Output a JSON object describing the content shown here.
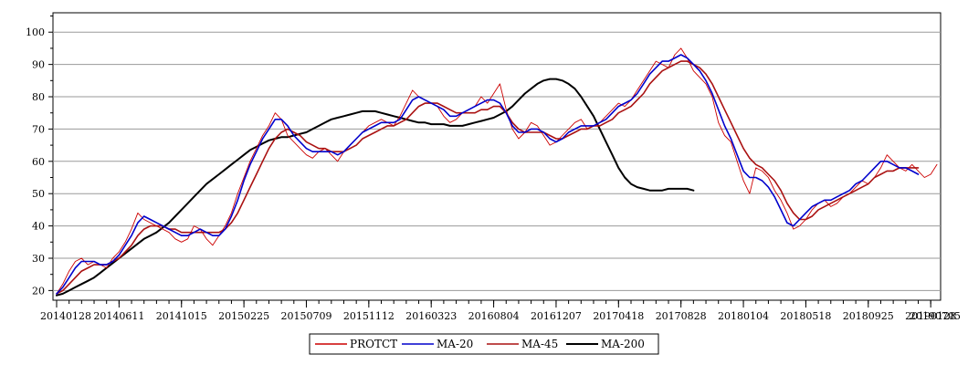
{
  "chart_data": {
    "type": "line",
    "title": "",
    "xlabel": "",
    "ylabel": "",
    "ylim": [
      17,
      106
    ],
    "yticks": [
      20,
      30,
      40,
      50,
      60,
      70,
      80,
      90,
      100
    ],
    "grid": "horizontal",
    "legend_position": "bottom-center",
    "x_tick_labels": [
      "20140128",
      "20140611",
      "20141015",
      "20150225",
      "20150709",
      "20151112",
      "20160323",
      "20160804",
      "20161207",
      "20170418",
      "20170828",
      "20180104",
      "20180518",
      "20180925",
      "20190128",
      "20190705"
    ],
    "x_tick_index": [
      0,
      10,
      20,
      30,
      40,
      50,
      60,
      70,
      80,
      90,
      100,
      110,
      120,
      130,
      140,
      150
    ],
    "series": [
      {
        "name": "PROTCT",
        "color": "#cc0000",
        "width": 0.9,
        "values": [
          19,
          22,
          26,
          29,
          30,
          28,
          29,
          28,
          27,
          30,
          32,
          35,
          39,
          44,
          42,
          41,
          40,
          39,
          38,
          36,
          35,
          36,
          40,
          39,
          36,
          34,
          37,
          40,
          44,
          50,
          55,
          60,
          64,
          68,
          71,
          75,
          73,
          68,
          66,
          64,
          62,
          61,
          63,
          64,
          62,
          60,
          63,
          65,
          67,
          69,
          71,
          72,
          73,
          72,
          71,
          74,
          78,
          82,
          80,
          79,
          78,
          77,
          74,
          72,
          73,
          75,
          76,
          77,
          80,
          78,
          81,
          84,
          76,
          70,
          67,
          69,
          72,
          71,
          68,
          65,
          66,
          68,
          70,
          72,
          73,
          70,
          71,
          72,
          74,
          76,
          78,
          77,
          79,
          82,
          85,
          88,
          91,
          90,
          89,
          93,
          95,
          92,
          88,
          86,
          84,
          80,
          72,
          68,
          66,
          60,
          54,
          50,
          58,
          57,
          55,
          51,
          48,
          44,
          39,
          40,
          42,
          45,
          47,
          48,
          46,
          47,
          49,
          50,
          52,
          54,
          53,
          55,
          58,
          62,
          60,
          58,
          57,
          59,
          57,
          55,
          56,
          59
        ]
      },
      {
        "name": "MA-20",
        "color": "#0000cc",
        "width": 1.6,
        "values": [
          19,
          21,
          24,
          27,
          29,
          29,
          29,
          28,
          28,
          29,
          31,
          34,
          37,
          41,
          43,
          42,
          41,
          40,
          39,
          38,
          37,
          37,
          38,
          39,
          38,
          37,
          37,
          39,
          43,
          48,
          54,
          59,
          63,
          67,
          70,
          73,
          73,
          71,
          68,
          66,
          64,
          63,
          63,
          63,
          63,
          62,
          63,
          65,
          67,
          69,
          70,
          71,
          72,
          72,
          72,
          73,
          76,
          79,
          80,
          79,
          78,
          77,
          76,
          74,
          74,
          75,
          76,
          77,
          78,
          79,
          79,
          78,
          75,
          71,
          69,
          69,
          70,
          70,
          69,
          67,
          66,
          67,
          69,
          70,
          71,
          71,
          71,
          72,
          73,
          75,
          77,
          78,
          79,
          81,
          84,
          87,
          89,
          91,
          91,
          92,
          93,
          92,
          90,
          88,
          85,
          81,
          76,
          71,
          67,
          62,
          57,
          55,
          55,
          54,
          52,
          49,
          45,
          41,
          40,
          42,
          44,
          46,
          47,
          48,
          48,
          49,
          50,
          51,
          53,
          54,
          56,
          58,
          60,
          60,
          59,
          58,
          58,
          57,
          56
        ]
      },
      {
        "name": "MA-45",
        "color": "#aa1111",
        "width": 1.6,
        "values": [
          19,
          20,
          22,
          24,
          26,
          27,
          28,
          28,
          28,
          29,
          30,
          32,
          34,
          37,
          39,
          40,
          40,
          40,
          39,
          39,
          38,
          38,
          38,
          38,
          38,
          38,
          38,
          39,
          41,
          44,
          48,
          52,
          56,
          60,
          64,
          67,
          69,
          70,
          69,
          68,
          66,
          65,
          64,
          64,
          63,
          63,
          63,
          64,
          65,
          67,
          68,
          69,
          70,
          71,
          71,
          72,
          73,
          75,
          77,
          78,
          78,
          78,
          77,
          76,
          75,
          75,
          75,
          75,
          76,
          76,
          77,
          77,
          75,
          72,
          70,
          69,
          69,
          69,
          69,
          68,
          67,
          67,
          68,
          69,
          70,
          70,
          71,
          71,
          72,
          73,
          75,
          76,
          77,
          79,
          81,
          84,
          86,
          88,
          89,
          90,
          91,
          91,
          90,
          89,
          87,
          84,
          80,
          76,
          72,
          68,
          64,
          61,
          59,
          58,
          56,
          54,
          51,
          47,
          44,
          42,
          42,
          43,
          45,
          46,
          47,
          48,
          49,
          50,
          51,
          52,
          53,
          55,
          56,
          57,
          57,
          58,
          58,
          58,
          58
        ]
      },
      {
        "name": "MA-200",
        "color": "#000000",
        "width": 2,
        "values": [
          18.5,
          19,
          20,
          21,
          22,
          23,
          24,
          25.5,
          27,
          28.5,
          30,
          31.5,
          33,
          34.5,
          36,
          37,
          38,
          39.5,
          41,
          43,
          45,
          47,
          49,
          51,
          53,
          54.5,
          56,
          57.5,
          59,
          60.5,
          62,
          63.5,
          64.5,
          65.5,
          66.5,
          67,
          67.5,
          67.5,
          68,
          68.5,
          69,
          70,
          71,
          72,
          73,
          73.5,
          74,
          74.5,
          75,
          75.5,
          75.5,
          75.5,
          75,
          74.5,
          74,
          73.5,
          73,
          72.5,
          72,
          72,
          71.5,
          71.5,
          71.5,
          71,
          71,
          71,
          71.5,
          72,
          72.5,
          73,
          73.5,
          74.5,
          75.5,
          77,
          79,
          81,
          82.5,
          84,
          85,
          85.5,
          85.5,
          85,
          84,
          82.5,
          80,
          77,
          74,
          70,
          66,
          62,
          58,
          55,
          53,
          52,
          51.5,
          51,
          51,
          51,
          51.5,
          51.5,
          51.5,
          51.5,
          51
        ]
      }
    ]
  }
}
